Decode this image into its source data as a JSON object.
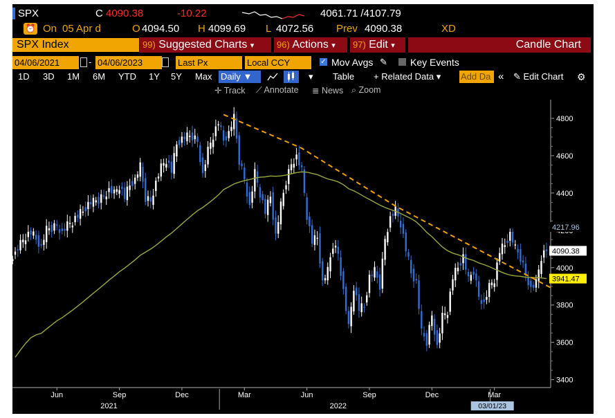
{
  "header": {
    "ticker": "SPX",
    "close_prefix": "C",
    "close": "4090.38",
    "change": "-10.22",
    "range_low_high": "4061.71 /4107.79",
    "line2_on": "On",
    "line2_date": "05 Apr d",
    "open_label": "O",
    "open": "4094.50",
    "high_label": "H",
    "high": "4099.69",
    "low_label": "L",
    "low": "4072.56",
    "prev_label": "Prev",
    "prev": "4090.38",
    "xd": "XD"
  },
  "menubar": {
    "security": "SPX Index",
    "suggested_num": "99)",
    "suggested": "Suggested Charts",
    "actions_num": "96)",
    "actions": "Actions",
    "edit_num": "97)",
    "edit": "Edit",
    "chart_type": "Candle Chart"
  },
  "controls": {
    "start_date": "04/06/2021",
    "end_date": "04/06/2023",
    "field": "Last Px",
    "currency": "Local CCY",
    "mov_avgs": "Mov Avgs",
    "key_events": "Key Events"
  },
  "toolbar": {
    "periods": [
      "1D",
      "3D",
      "1M",
      "6M",
      "YTD",
      "1Y",
      "5Y",
      "Max"
    ],
    "frequency": "Daily",
    "table": "Table",
    "related": "Related Data",
    "add_data": "Add Da",
    "edit_chart": "Edit Chart"
  },
  "subtoolbar": {
    "track": "Track",
    "annotate": "Annotate",
    "news": "News",
    "zoom": "Zoom"
  },
  "colors": {
    "accent": "#f0a500",
    "menu_bg": "#8b0a14",
    "up": "#ffffff",
    "down": "#2f6fd6",
    "ma": "#9aa83a",
    "trend": "#f0a000",
    "last_price_box": "#ffffff",
    "ma_box": "#ffee00",
    "tag_box": "#a9c4e0"
  },
  "chart_data": {
    "type": "candlestick",
    "title": "SPX Index",
    "xlabel": "",
    "ylabel": "",
    "ylim": [
      3380,
      4900
    ],
    "y_ticks": [
      3400,
      3600,
      3800,
      4000,
      4200,
      4400,
      4600,
      4800
    ],
    "x_ticks": [
      "Jun",
      "Sep",
      "Dec",
      "Mar",
      "Jun",
      "Sep",
      "Dec",
      "Mar"
    ],
    "x_tick_index": [
      8,
      20,
      32,
      44,
      56,
      68,
      80,
      92
    ],
    "years": [
      {
        "label": "2021",
        "index": 18
      },
      {
        "label": "2022",
        "index": 62
      }
    ],
    "x_tag": "03/01/23",
    "x_tag_index": 92,
    "period": "weekly-sampled closes, Apr 2021 - Apr 2023",
    "close": [
      4080,
      4130,
      4170,
      4190,
      4150,
      4110,
      4200,
      4210,
      4230,
      4190,
      4230,
      4250,
      4280,
      4300,
      4340,
      4350,
      4360,
      4390,
      4420,
      4400,
      4440,
      4380,
      4440,
      4470,
      4540,
      4370,
      4360,
      4460,
      4540,
      4580,
      4520,
      4660,
      4690,
      4700,
      4700,
      4680,
      4500,
      4630,
      4710,
      4780,
      4680,
      4720,
      4800,
      4570,
      4480,
      4330,
      4510,
      4400,
      4300,
      4380,
      4170,
      4330,
      4460,
      4560,
      4600,
      4520,
      4280,
      4140,
      4160,
      3920,
      3980,
      4120,
      4080,
      3880,
      3680,
      3900,
      3780,
      3790,
      3950,
      3980,
      3900,
      4160,
      4270,
      4310,
      4240,
      4100,
      3970,
      3920,
      3650,
      3600,
      3750,
      3580,
      3740,
      3770,
      3950,
      4000,
      4060,
      3930,
      3980,
      3850,
      3810,
      3900,
      3940,
      4090,
      4120,
      4180,
      4100,
      4050,
      3970,
      3890,
      3920,
      4060,
      4100
    ],
    "series": [
      {
        "name": "Moving Average",
        "last": 3941.47
      },
      {
        "name": "Trendline",
        "points": [
          {
            "index": 40,
            "value": 4820
          },
          {
            "index": 55,
            "value": 4640
          },
          {
            "index": 73,
            "value": 4330
          },
          {
            "index": 103,
            "value": 3890
          }
        ]
      }
    ],
    "labels": {
      "last_price": "4090.38",
      "moving_average": "3941.47",
      "previous_high": "4217.96"
    }
  }
}
